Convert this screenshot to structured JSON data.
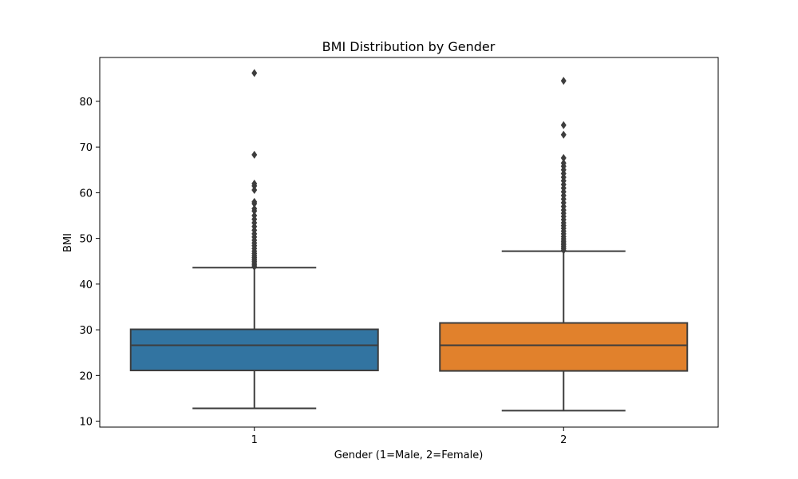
{
  "chart_data": {
    "type": "box",
    "title": "BMI Distribution by Gender",
    "xlabel": "Gender (1=Male, 2=Female)",
    "ylabel": "BMI",
    "ylim": [
      8.7,
      89.6
    ],
    "yticks": [
      10,
      20,
      30,
      40,
      50,
      60,
      70,
      80
    ],
    "grid": false,
    "categories": [
      "1",
      "2"
    ],
    "boxes": [
      {
        "category": "1",
        "color": "#3274a1",
        "whisker_low": 12.8,
        "q1": 21.1,
        "median": 26.6,
        "q3": 30.1,
        "whisker_high": 43.6,
        "outliers": [
          43.8,
          44.2,
          44.6,
          45.0,
          45.4,
          45.8,
          46.2,
          46.7,
          47.2,
          47.8,
          48.4,
          49.0,
          49.6,
          50.3,
          51.0,
          51.8,
          52.6,
          53.4,
          54.2,
          55.0,
          56.0,
          56.5,
          57.6,
          58.0,
          60.6,
          61.5,
          62.0,
          68.3,
          86.2
        ]
      },
      {
        "category": "2",
        "color": "#e1812c",
        "whisker_low": 12.3,
        "q1": 21.0,
        "median": 26.6,
        "q3": 31.5,
        "whisker_high": 47.2,
        "outliers": [
          47.4,
          47.8,
          48.2,
          48.6,
          49.0,
          49.4,
          49.9,
          50.4,
          51.0,
          51.6,
          52.2,
          52.8,
          53.4,
          54.1,
          54.8,
          55.5,
          56.2,
          57.0,
          57.8,
          58.6,
          59.4,
          60.2,
          61.0,
          61.8,
          62.6,
          63.4,
          64.2,
          65.0,
          65.8,
          66.5,
          67.6,
          72.7,
          74.8,
          84.5
        ]
      }
    ]
  }
}
